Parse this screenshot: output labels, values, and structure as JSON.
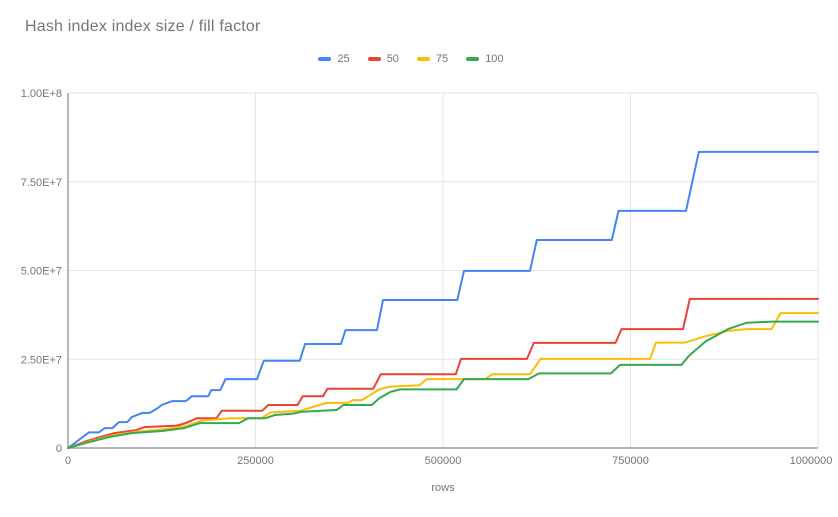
{
  "chart_data": {
    "type": "line",
    "title": "Hash index index size / fill factor",
    "xlabel": "rows",
    "ylabel": "",
    "xlim": [
      0,
      1000000
    ],
    "ylim": [
      0,
      100000000
    ],
    "grid": true,
    "legend_position": "top",
    "x_ticks": [
      {
        "value": 0,
        "label": "0"
      },
      {
        "value": 250000,
        "label": "250000"
      },
      {
        "value": 500000,
        "label": "500000"
      },
      {
        "value": 750000,
        "label": "750000"
      },
      {
        "value": 1000000,
        "label": "1000000"
      }
    ],
    "y_ticks": [
      {
        "value": 0,
        "label": "0"
      },
      {
        "value": 25000000,
        "label": "2.50E+7"
      },
      {
        "value": 50000000,
        "label": "5.00E+7"
      },
      {
        "value": 75000000,
        "label": "7.50E+7"
      },
      {
        "value": 100000000,
        "label": "1.00E+8"
      }
    ],
    "series": [
      {
        "name": "25",
        "color": "#4285F4",
        "points": [
          [
            0,
            0
          ],
          [
            16000,
            2500000
          ],
          [
            28000,
            4400000
          ],
          [
            41000,
            4400000
          ],
          [
            49000,
            5600000
          ],
          [
            59000,
            5600000
          ],
          [
            68000,
            7300000
          ],
          [
            79000,
            7300000
          ],
          [
            85000,
            8700000
          ],
          [
            99000,
            9900000
          ],
          [
            109000,
            9900000
          ],
          [
            118000,
            11000000
          ],
          [
            125000,
            12100000
          ],
          [
            139000,
            13200000
          ],
          [
            157000,
            13200000
          ],
          [
            165000,
            14600000
          ],
          [
            187000,
            14600000
          ],
          [
            191000,
            16300000
          ],
          [
            203000,
            16300000
          ],
          [
            210000,
            19400000
          ],
          [
            252000,
            19400000
          ],
          [
            261000,
            24600000
          ],
          [
            309000,
            24600000
          ],
          [
            316000,
            29300000
          ],
          [
            364000,
            29300000
          ],
          [
            370000,
            33200000
          ],
          [
            412000,
            33200000
          ],
          [
            420000,
            41700000
          ],
          [
            519000,
            41700000
          ],
          [
            528000,
            49900000
          ],
          [
            616000,
            49900000
          ],
          [
            625000,
            58600000
          ],
          [
            725000,
            58600000
          ],
          [
            734000,
            66800000
          ],
          [
            824000,
            66800000
          ],
          [
            841000,
            83400000
          ],
          [
            1000000,
            83400000
          ]
        ]
      },
      {
        "name": "50",
        "color": "#EA4335",
        "points": [
          [
            0,
            0
          ],
          [
            25000,
            2000000
          ],
          [
            50000,
            3500000
          ],
          [
            62000,
            4200000
          ],
          [
            90000,
            5000000
          ],
          [
            102000,
            5900000
          ],
          [
            145000,
            6300000
          ],
          [
            157000,
            7000000
          ],
          [
            172000,
            8400000
          ],
          [
            198000,
            8400000
          ],
          [
            205000,
            10500000
          ],
          [
            259000,
            10500000
          ],
          [
            267000,
            12100000
          ],
          [
            306000,
            12100000
          ],
          [
            313000,
            14600000
          ],
          [
            340000,
            14600000
          ],
          [
            346000,
            16700000
          ],
          [
            407000,
            16700000
          ],
          [
            417000,
            20800000
          ],
          [
            517000,
            20800000
          ],
          [
            524000,
            25100000
          ],
          [
            612000,
            25100000
          ],
          [
            621000,
            29600000
          ],
          [
            730000,
            29600000
          ],
          [
            738000,
            33500000
          ],
          [
            820000,
            33500000
          ],
          [
            829000,
            42000000
          ],
          [
            1000000,
            42000000
          ]
        ]
      },
      {
        "name": "75",
        "color": "#FBBC04",
        "points": [
          [
            0,
            0
          ],
          [
            28000,
            1800000
          ],
          [
            58000,
            3500000
          ],
          [
            88000,
            4500000
          ],
          [
            128000,
            5300000
          ],
          [
            158000,
            6200000
          ],
          [
            178000,
            7700000
          ],
          [
            215000,
            8400000
          ],
          [
            258000,
            8400000
          ],
          [
            270000,
            10000000
          ],
          [
            310000,
            10500000
          ],
          [
            335000,
            12100000
          ],
          [
            345000,
            12700000
          ],
          [
            373000,
            12700000
          ],
          [
            380000,
            13500000
          ],
          [
            392000,
            13500000
          ],
          [
            415000,
            16500000
          ],
          [
            429000,
            17300000
          ],
          [
            469000,
            17700000
          ],
          [
            478000,
            19400000
          ],
          [
            556000,
            19400000
          ],
          [
            566000,
            20800000
          ],
          [
            616000,
            20800000
          ],
          [
            630000,
            25100000
          ],
          [
            776000,
            25100000
          ],
          [
            784000,
            29700000
          ],
          [
            823000,
            29700000
          ],
          [
            850000,
            31500000
          ],
          [
            880000,
            33000000
          ],
          [
            905000,
            33500000
          ],
          [
            938000,
            33500000
          ],
          [
            950000,
            38000000
          ],
          [
            1000000,
            38000000
          ]
        ]
      },
      {
        "name": "100",
        "color": "#34A853",
        "points": [
          [
            0,
            0
          ],
          [
            25000,
            1500000
          ],
          [
            55000,
            3100000
          ],
          [
            85000,
            4200000
          ],
          [
            125000,
            4800000
          ],
          [
            155000,
            5600000
          ],
          [
            176000,
            7000000
          ],
          [
            228000,
            7000000
          ],
          [
            240000,
            8400000
          ],
          [
            263000,
            8400000
          ],
          [
            276000,
            9300000
          ],
          [
            300000,
            9700000
          ],
          [
            312000,
            10200000
          ],
          [
            358000,
            10700000
          ],
          [
            362000,
            11300000
          ],
          [
            367000,
            12100000
          ],
          [
            405000,
            12100000
          ],
          [
            415000,
            14000000
          ],
          [
            430000,
            15800000
          ],
          [
            443000,
            16500000
          ],
          [
            518000,
            16500000
          ],
          [
            528000,
            19400000
          ],
          [
            614000,
            19400000
          ],
          [
            628000,
            21000000
          ],
          [
            724000,
            21000000
          ],
          [
            736000,
            23400000
          ],
          [
            818000,
            23400000
          ],
          [
            828000,
            26000000
          ],
          [
            850000,
            30000000
          ],
          [
            880000,
            33500000
          ],
          [
            905000,
            35300000
          ],
          [
            940000,
            35600000
          ],
          [
            1000000,
            35600000
          ]
        ]
      }
    ]
  },
  "colors": {
    "gridline": "#e6e6e6",
    "axis_line": "#9e9e9e",
    "title_text": "#757575",
    "tick_text": "#757575"
  }
}
